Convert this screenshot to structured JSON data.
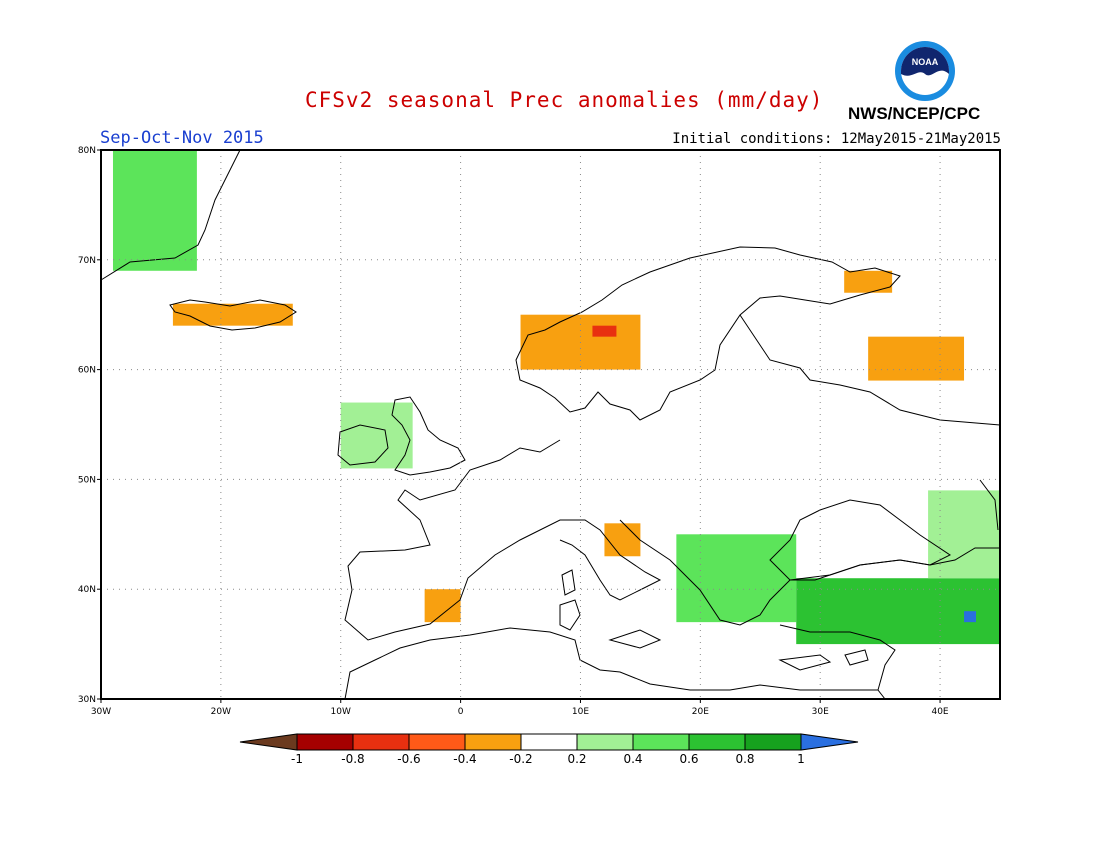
{
  "header": {
    "title": "CFSv2 seasonal Prec anomalies (mm/day)",
    "season": "Sep-Oct-Nov 2015",
    "initial_conditions": "Initial conditions: 12May2015-21May2015",
    "agency": "NWS/NCEP/CPC",
    "logo_text": "NOAA"
  },
  "colors": {
    "title": "#cc0000",
    "season": "#1a3fd0",
    "neg_1": "#6b3a1f",
    "neg_08": "#a50000",
    "neg_06": "#e83010",
    "neg_04": "#ff5a18",
    "neg_02": "#f8a010",
    "neutral": "#ffffff",
    "pos_02": "#a2f095",
    "pos_04": "#5ce45a",
    "pos_06": "#2cc232",
    "pos_08": "#16a21e",
    "pos_1": "#2a6fe0"
  },
  "map": {
    "lon_range": [
      -30,
      45
    ],
    "lat_range": [
      30,
      80
    ],
    "lon_ticks": [
      "30W",
      "20W",
      "10W",
      "0",
      "10E",
      "20E",
      "30E",
      "40E"
    ],
    "lat_ticks": [
      "80N",
      "70N",
      "60N",
      "50N",
      "40N",
      "30N"
    ]
  },
  "colorbar": {
    "labels": [
      "-1",
      "-0.8",
      "-0.6",
      "-0.4",
      "-0.2",
      "0.2",
      "0.4",
      "0.6",
      "0.8",
      "1"
    ]
  },
  "anomaly_regions": [
    {
      "name": "Greenland east coast",
      "value": 0.4,
      "lon": [
        -29,
        -22
      ],
      "lat": [
        69,
        80
      ]
    },
    {
      "name": "Iceland",
      "value": -0.3,
      "lon": [
        -24,
        -14
      ],
      "lat": [
        64,
        66
      ]
    },
    {
      "name": "Norway west coast",
      "value": -0.35,
      "lon": [
        5,
        15
      ],
      "lat": [
        60,
        65
      ]
    },
    {
      "name": "Central Norway",
      "value": -0.6,
      "lon": [
        11,
        13
      ],
      "lat": [
        63,
        64
      ]
    },
    {
      "name": "Kola Peninsula",
      "value": -0.3,
      "lon": [
        32,
        36
      ],
      "lat": [
        67,
        69
      ]
    },
    {
      "name": "Western Russia",
      "value": -0.3,
      "lon": [
        34,
        42
      ],
      "lat": [
        59,
        63
      ]
    },
    {
      "name": "Ireland / Scotland",
      "value": 0.3,
      "lon": [
        -10,
        -4
      ],
      "lat": [
        51,
        57
      ]
    },
    {
      "name": "Eastern Spain",
      "value": -0.3,
      "lon": [
        -3,
        0
      ],
      "lat": [
        37,
        40
      ]
    },
    {
      "name": "Northern Italy",
      "value": -0.3,
      "lon": [
        12,
        15
      ],
      "lat": [
        43,
        46
      ]
    },
    {
      "name": "Balkans / Greece",
      "value": 0.5,
      "lon": [
        18,
        28
      ],
      "lat": [
        37,
        45
      ]
    },
    {
      "name": "Turkey",
      "value": 0.65,
      "lon": [
        28,
        45
      ],
      "lat": [
        35,
        41
      ]
    },
    {
      "name": "Eastern Turkey",
      "value": 1.1,
      "lon": [
        42,
        43
      ],
      "lat": [
        37,
        38
      ]
    },
    {
      "name": "Caucasus",
      "value": 0.3,
      "lon": [
        39,
        45
      ],
      "lat": [
        41,
        49
      ]
    }
  ]
}
